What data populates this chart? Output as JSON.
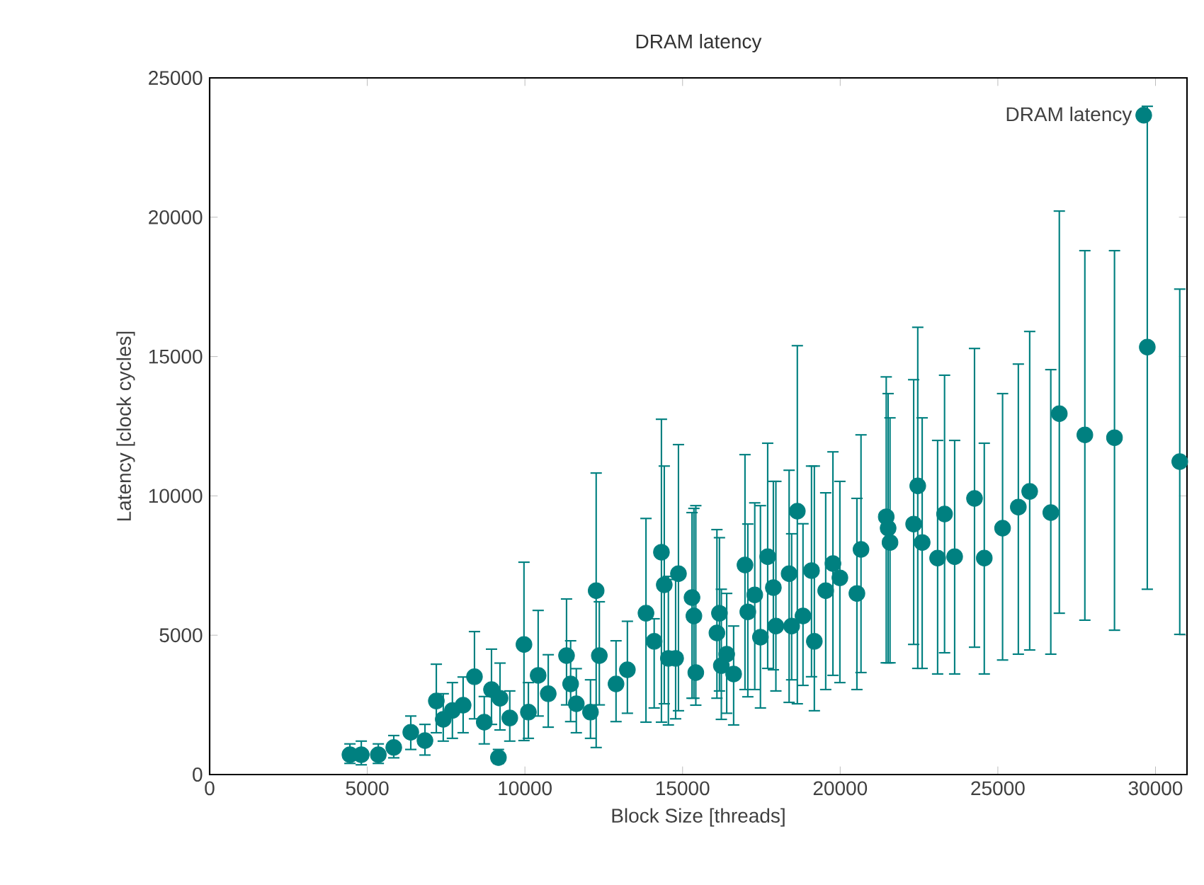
{
  "chart_data": {
    "type": "scatter",
    "title": "DRAM latency",
    "xlabel": "Block Size [threads]",
    "ylabel": "Latency [clock cycles]",
    "xlim": [
      0,
      31000
    ],
    "xticks": [
      0,
      5000,
      10000,
      15000,
      20000,
      25000,
      30000
    ],
    "ylim": [
      0,
      25000
    ],
    "yticks": [
      0,
      5000,
      10000,
      15000,
      20000,
      25000
    ],
    "grid": false,
    "legend": "top right",
    "marker": "circle",
    "series": [
      {
        "name": "DRAM latency",
        "color": "#008080",
        "x": [
          4450,
          4810,
          5350,
          5840,
          6380,
          6830,
          7190,
          7410,
          7700,
          8040,
          8400,
          8710,
          8940,
          9160,
          9210,
          9520,
          9970,
          10110,
          10420,
          10740,
          11320,
          11450,
          11630,
          12080,
          12260,
          12360,
          12890,
          13250,
          13840,
          14100,
          14330,
          14420,
          14550,
          14780,
          14870,
          15300,
          15360,
          15420,
          16090,
          16170,
          16230,
          16400,
          16620,
          16980,
          17070,
          17290,
          17470,
          17700,
          17880,
          17960,
          18380,
          18460,
          18640,
          18820,
          19090,
          19180,
          19540,
          19770,
          19990,
          20530,
          20660,
          21460,
          21520,
          21580,
          22330,
          22460,
          22600,
          23090,
          23310,
          23630,
          24260,
          24570,
          25150,
          25650,
          26010,
          26680,
          26950,
          27760,
          28700,
          29740,
          30770
        ],
        "values": [
          710,
          710,
          710,
          970,
          1520,
          1220,
          2640,
          1980,
          2300,
          2490,
          3510,
          1880,
          3050,
          610,
          2740,
          2030,
          4670,
          2240,
          3560,
          2900,
          4270,
          3250,
          2540,
          2240,
          6600,
          4270,
          3250,
          3760,
          5790,
          4780,
          7980,
          6810,
          4170,
          4170,
          7210,
          6350,
          5690,
          3660,
          5080,
          5790,
          3910,
          4320,
          3610,
          7520,
          5840,
          6450,
          4930,
          7820,
          6710,
          5330,
          7210,
          5330,
          9450,
          5690,
          7320,
          4780,
          6600,
          7570,
          7060,
          6500,
          8080,
          9250,
          8840,
          8330,
          8990,
          10360,
          8330,
          7770,
          9350,
          7820,
          9910,
          7770,
          8840,
          9600,
          10160,
          9400,
          12950,
          12190,
          12090,
          15340,
          11230
        ],
        "errors": [
          [
            400,
            1100
          ],
          [
            350,
            1200
          ],
          [
            400,
            1100
          ],
          [
            600,
            1400
          ],
          [
            900,
            2100
          ],
          [
            700,
            1800
          ],
          [
            1500,
            3960
          ],
          [
            1200,
            2900
          ],
          [
            1300,
            3300
          ],
          [
            1500,
            3500
          ],
          [
            2000,
            5130
          ],
          [
            1100,
            2800
          ],
          [
            1800,
            4500
          ],
          [
            400,
            900
          ],
          [
            1600,
            4000
          ],
          [
            1200,
            3000
          ],
          [
            1220,
            7620
          ],
          [
            1300,
            3300
          ],
          [
            2100,
            5890
          ],
          [
            1700,
            4300
          ],
          [
            2500,
            6300
          ],
          [
            1900,
            4800
          ],
          [
            1500,
            3800
          ],
          [
            1300,
            3400
          ],
          [
            970,
            10820
          ],
          [
            2500,
            6200
          ],
          [
            1900,
            4800
          ],
          [
            2200,
            5500
          ],
          [
            1880,
            9190
          ],
          [
            2390,
            5590
          ],
          [
            1880,
            12750
          ],
          [
            2540,
            11070
          ],
          [
            1780,
            7110
          ],
          [
            2000,
            7000
          ],
          [
            2290,
            11840
          ],
          [
            2740,
            9400
          ],
          [
            2740,
            9550
          ],
          [
            2490,
            9650
          ],
          [
            2740,
            8790
          ],
          [
            3000,
            8500
          ],
          [
            1980,
            6650
          ],
          [
            2200,
            6500
          ],
          [
            1780,
            5330
          ],
          [
            3050,
            11480
          ],
          [
            2790,
            8990
          ],
          [
            3050,
            9750
          ],
          [
            2390,
            9650
          ],
          [
            3810,
            11890
          ],
          [
            3760,
            10520
          ],
          [
            3000,
            10520
          ],
          [
            2590,
            10920
          ],
          [
            3400,
            8640
          ],
          [
            2540,
            15390
          ],
          [
            3200,
            9000
          ],
          [
            3510,
            11070
          ],
          [
            2290,
            11070
          ],
          [
            3050,
            10110
          ],
          [
            3560,
            11580
          ],
          [
            3300,
            10520
          ],
          [
            3050,
            9910
          ],
          [
            3660,
            12190
          ],
          [
            4010,
            14270
          ],
          [
            4010,
            13670
          ],
          [
            4010,
            12800
          ],
          [
            4670,
            14170
          ],
          [
            3810,
            16050
          ],
          [
            3810,
            12800
          ],
          [
            3610,
            11990
          ],
          [
            4370,
            14330
          ],
          [
            3610,
            11990
          ],
          [
            4570,
            15290
          ],
          [
            3610,
            11890
          ],
          [
            4110,
            13670
          ],
          [
            4320,
            14730
          ],
          [
            4470,
            15900
          ],
          [
            4320,
            14530
          ],
          [
            5790,
            20220
          ],
          [
            5540,
            18800
          ],
          [
            5180,
            18800
          ],
          [
            6650,
            23980
          ],
          [
            5030,
            17420
          ]
        ]
      }
    ]
  }
}
